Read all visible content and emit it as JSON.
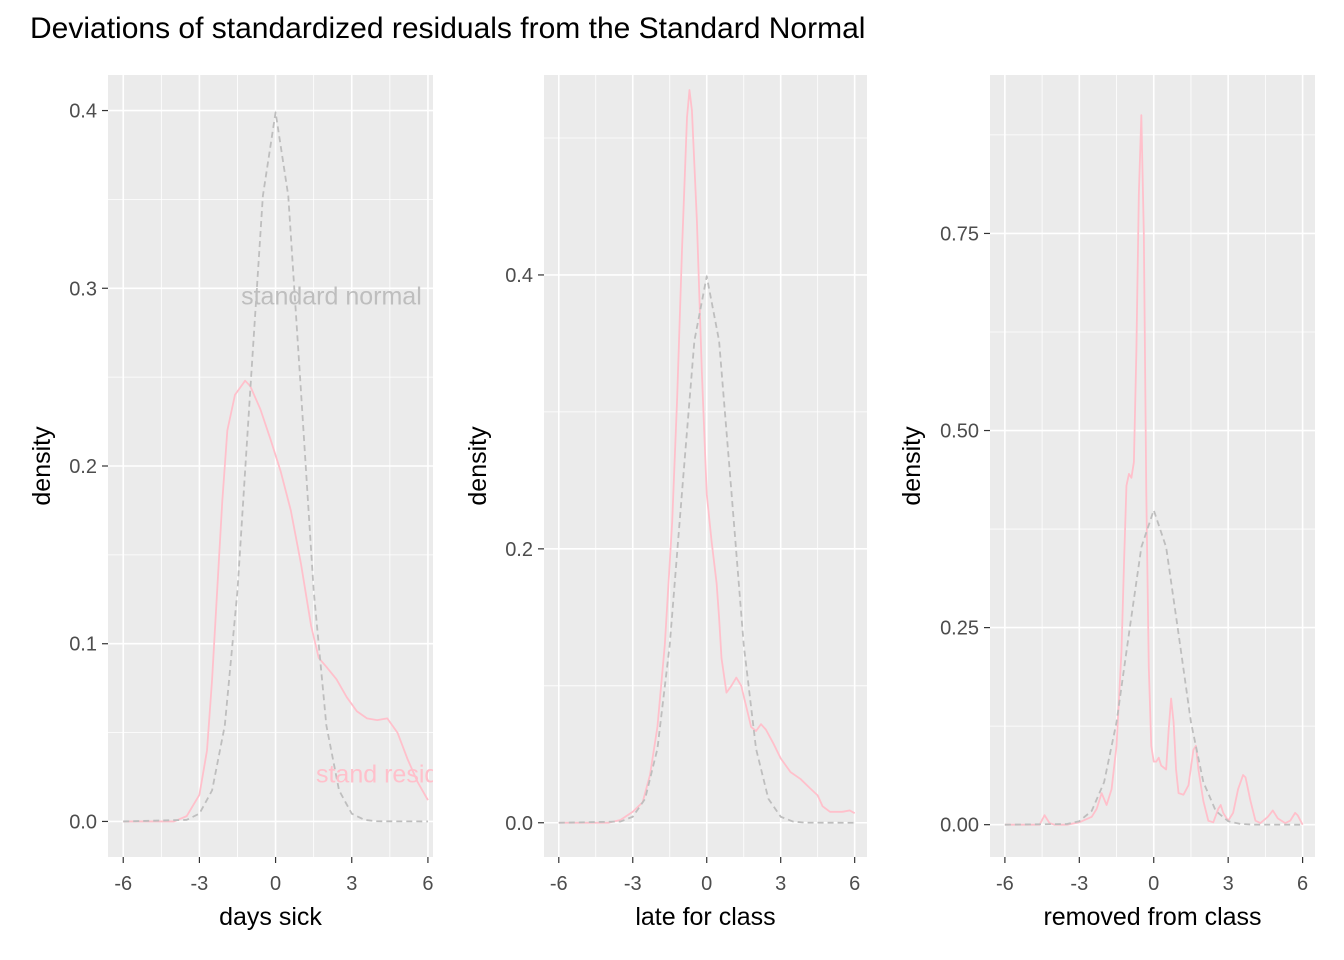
{
  "title": "Deviations of standardized residuals from the Standard Normal",
  "colors": {
    "panel_bg": "#ebebeb",
    "grid": "#ffffff",
    "residual": "#ffc0cb",
    "normal": "#bebebe",
    "tick": "#4d4d4d"
  },
  "chart_data": [
    {
      "type": "line",
      "xlabel": "days sick",
      "ylabel": "density",
      "xlim": [
        -6.6,
        6.2
      ],
      "ylim": [
        -0.02,
        0.42
      ],
      "xticks": [
        -6,
        -3,
        0,
        3,
        6
      ],
      "xtick_labels": [
        "-6",
        "-3",
        "0",
        "3",
        "6"
      ],
      "yticks": [
        0.0,
        0.1,
        0.2,
        0.3,
        0.4
      ],
      "ytick_labels": [
        "0.0",
        "0.1",
        "0.2",
        "0.3",
        "0.4"
      ],
      "grid": true,
      "annotations": [
        {
          "text": "standard normal",
          "x": 2.2,
          "y": 0.296,
          "series": "normal"
        },
        {
          "text": "stand resid",
          "x": 4.0,
          "y": 0.027,
          "series": "residual"
        }
      ],
      "series": [
        {
          "key": "residual",
          "style": "solid",
          "points": [
            [
              -6,
              0
            ],
            [
              -4,
              0
            ],
            [
              -3.5,
              0.003
            ],
            [
              -3,
              0.015
            ],
            [
              -2.7,
              0.04
            ],
            [
              -2.5,
              0.08
            ],
            [
              -2.3,
              0.13
            ],
            [
              -2.1,
              0.18
            ],
            [
              -1.9,
              0.22
            ],
            [
              -1.6,
              0.24
            ],
            [
              -1.2,
              0.248
            ],
            [
              -1.0,
              0.245
            ],
            [
              -0.6,
              0.232
            ],
            [
              -0.2,
              0.215
            ],
            [
              0.2,
              0.197
            ],
            [
              0.6,
              0.175
            ],
            [
              1.0,
              0.145
            ],
            [
              1.4,
              0.11
            ],
            [
              1.7,
              0.092
            ],
            [
              2.0,
              0.087
            ],
            [
              2.4,
              0.08
            ],
            [
              2.8,
              0.07
            ],
            [
              3.2,
              0.062
            ],
            [
              3.6,
              0.058
            ],
            [
              4.0,
              0.057
            ],
            [
              4.4,
              0.058
            ],
            [
              4.8,
              0.05
            ],
            [
              5.2,
              0.035
            ],
            [
              5.6,
              0.022
            ],
            [
              6.0,
              0.012
            ]
          ]
        },
        {
          "key": "normal",
          "style": "dashed",
          "points": [
            [
              -6,
              0
            ],
            [
              -3.5,
              0.0009
            ],
            [
              -3,
              0.0044
            ],
            [
              -2.5,
              0.0175
            ],
            [
              -2,
              0.054
            ],
            [
              -1.5,
              0.13
            ],
            [
              -1,
              0.242
            ],
            [
              -0.5,
              0.352
            ],
            [
              0,
              0.399
            ],
            [
              0.5,
              0.352
            ],
            [
              1,
              0.242
            ],
            [
              1.5,
              0.13
            ],
            [
              2,
              0.054
            ],
            [
              2.5,
              0.0175
            ],
            [
              3,
              0.0044
            ],
            [
              3.5,
              0.0009
            ],
            [
              4,
              0.0001
            ],
            [
              6,
              0
            ]
          ]
        }
      ]
    },
    {
      "type": "line",
      "xlabel": "late for class",
      "ylabel": "density",
      "xlim": [
        -6.6,
        6.5
      ],
      "ylim": [
        -0.025,
        0.546
      ],
      "xticks": [
        -6,
        -3,
        0,
        3,
        6
      ],
      "xtick_labels": [
        "-6",
        "-3",
        "0",
        "3",
        "6"
      ],
      "yticks": [
        0.0,
        0.2,
        0.4
      ],
      "ytick_labels": [
        "0.0",
        "0.2",
        "0.4"
      ],
      "grid": true,
      "annotations": [],
      "series": [
        {
          "key": "residual",
          "style": "solid",
          "points": [
            [
              -6,
              0
            ],
            [
              -4,
              0
            ],
            [
              -3.5,
              0.002
            ],
            [
              -3,
              0.008
            ],
            [
              -2.6,
              0.015
            ],
            [
              -2.3,
              0.035
            ],
            [
              -2,
              0.07
            ],
            [
              -1.7,
              0.13
            ],
            [
              -1.4,
              0.22
            ],
            [
              -1.2,
              0.31
            ],
            [
              -1.0,
              0.42
            ],
            [
              -0.8,
              0.515
            ],
            [
              -0.7,
              0.535
            ],
            [
              -0.6,
              0.52
            ],
            [
              -0.4,
              0.44
            ],
            [
              -0.2,
              0.33
            ],
            [
              0,
              0.24
            ],
            [
              0.2,
              0.205
            ],
            [
              0.4,
              0.175
            ],
            [
              0.5,
              0.15
            ],
            [
              0.6,
              0.12
            ],
            [
              0.8,
              0.095
            ],
            [
              1.0,
              0.1
            ],
            [
              1.2,
              0.106
            ],
            [
              1.4,
              0.1
            ],
            [
              1.6,
              0.085
            ],
            [
              1.8,
              0.07
            ],
            [
              2.0,
              0.067
            ],
            [
              2.2,
              0.072
            ],
            [
              2.4,
              0.068
            ],
            [
              2.7,
              0.058
            ],
            [
              3.0,
              0.047
            ],
            [
              3.4,
              0.037
            ],
            [
              3.8,
              0.032
            ],
            [
              4.2,
              0.025
            ],
            [
              4.5,
              0.02
            ],
            [
              4.7,
              0.012
            ],
            [
              5.0,
              0.008
            ],
            [
              5.5,
              0.008
            ],
            [
              5.8,
              0.009
            ],
            [
              6.0,
              0.007
            ]
          ]
        },
        {
          "key": "normal",
          "style": "dashed",
          "points": [
            [
              -6,
              0
            ],
            [
              -3.5,
              0.0009
            ],
            [
              -3,
              0.0044
            ],
            [
              -2.5,
              0.0175
            ],
            [
              -2,
              0.054
            ],
            [
              -1.5,
              0.13
            ],
            [
              -1,
              0.242
            ],
            [
              -0.5,
              0.352
            ],
            [
              0,
              0.399
            ],
            [
              0.5,
              0.352
            ],
            [
              1,
              0.242
            ],
            [
              1.5,
              0.13
            ],
            [
              2,
              0.054
            ],
            [
              2.5,
              0.0175
            ],
            [
              3,
              0.0044
            ],
            [
              3.5,
              0.0009
            ],
            [
              4,
              0.0001
            ],
            [
              6,
              0
            ]
          ]
        }
      ]
    },
    {
      "type": "line",
      "xlabel": "removed from class",
      "ylabel": "density",
      "xlim": [
        -6.6,
        6.5
      ],
      "ylim": [
        -0.041,
        0.951
      ],
      "xticks": [
        -6,
        -3,
        0,
        3,
        6
      ],
      "xtick_labels": [
        "-6",
        "-3",
        "0",
        "3",
        "6"
      ],
      "yticks": [
        0.0,
        0.25,
        0.5,
        0.75
      ],
      "ytick_labels": [
        "0.00",
        "0.25",
        "0.50",
        "0.75"
      ],
      "grid": true,
      "annotations": [],
      "series": [
        {
          "key": "residual",
          "style": "solid",
          "points": [
            [
              -6,
              0
            ],
            [
              -4.6,
              0
            ],
            [
              -4.4,
              0.012
            ],
            [
              -4.2,
              0.002
            ],
            [
              -4.0,
              0
            ],
            [
              -3.5,
              0
            ],
            [
              -3.0,
              0.003
            ],
            [
              -2.5,
              0.01
            ],
            [
              -2.3,
              0.02
            ],
            [
              -2.1,
              0.04
            ],
            [
              -1.9,
              0.025
            ],
            [
              -1.7,
              0.045
            ],
            [
              -1.5,
              0.1
            ],
            [
              -1.3,
              0.22
            ],
            [
              -1.2,
              0.33
            ],
            [
              -1.1,
              0.43
            ],
            [
              -1.0,
              0.445
            ],
            [
              -0.9,
              0.44
            ],
            [
              -0.8,
              0.46
            ],
            [
              -0.7,
              0.6
            ],
            [
              -0.6,
              0.8
            ],
            [
              -0.5,
              0.9
            ],
            [
              -0.4,
              0.75
            ],
            [
              -0.3,
              0.42
            ],
            [
              -0.2,
              0.2
            ],
            [
              -0.1,
              0.1
            ],
            [
              0,
              0.08
            ],
            [
              0.1,
              0.08
            ],
            [
              0.2,
              0.085
            ],
            [
              0.3,
              0.075
            ],
            [
              0.5,
              0.07
            ],
            [
              0.6,
              0.12
            ],
            [
              0.7,
              0.16
            ],
            [
              0.8,
              0.13
            ],
            [
              0.9,
              0.07
            ],
            [
              1.0,
              0.04
            ],
            [
              1.2,
              0.038
            ],
            [
              1.4,
              0.05
            ],
            [
              1.6,
              0.095
            ],
            [
              1.7,
              0.1
            ],
            [
              1.8,
              0.07
            ],
            [
              2.0,
              0.03
            ],
            [
              2.2,
              0.005
            ],
            [
              2.4,
              0.003
            ],
            [
              2.6,
              0.02
            ],
            [
              2.7,
              0.025
            ],
            [
              2.8,
              0.015
            ],
            [
              3.0,
              0.005
            ],
            [
              3.2,
              0.015
            ],
            [
              3.4,
              0.045
            ],
            [
              3.6,
              0.063
            ],
            [
              3.7,
              0.06
            ],
            [
              3.9,
              0.03
            ],
            [
              4.1,
              0.005
            ],
            [
              4.3,
              0.002
            ],
            [
              4.6,
              0.01
            ],
            [
              4.8,
              0.018
            ],
            [
              5.0,
              0.008
            ],
            [
              5.3,
              0.002
            ],
            [
              5.5,
              0.005
            ],
            [
              5.7,
              0.015
            ],
            [
              5.8,
              0.012
            ],
            [
              6.0,
              0
            ]
          ]
        },
        {
          "key": "normal",
          "style": "dashed",
          "points": [
            [
              -6,
              0
            ],
            [
              -3.5,
              0.0009
            ],
            [
              -3,
              0.0044
            ],
            [
              -2.5,
              0.0175
            ],
            [
              -2,
              0.054
            ],
            [
              -1.5,
              0.13
            ],
            [
              -1,
              0.242
            ],
            [
              -0.5,
              0.352
            ],
            [
              0,
              0.399
            ],
            [
              0.5,
              0.352
            ],
            [
              1,
              0.242
            ],
            [
              1.5,
              0.13
            ],
            [
              2,
              0.054
            ],
            [
              2.5,
              0.0175
            ],
            [
              3,
              0.0044
            ],
            [
              3.5,
              0.0009
            ],
            [
              4,
              0.0001
            ],
            [
              6,
              0
            ]
          ]
        }
      ]
    }
  ]
}
